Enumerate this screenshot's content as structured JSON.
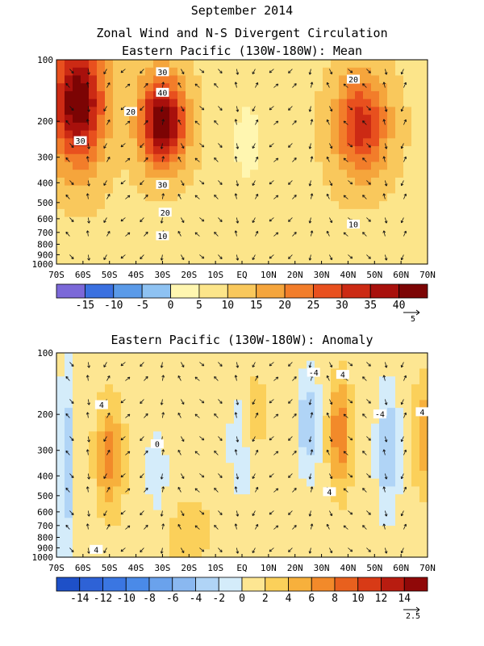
{
  "page": {
    "title_line1": "September 2014",
    "title_line2": "Zonal Wind and N-S Divergent Circulation"
  },
  "chart_data": [
    {
      "type": "heatmap",
      "title": "Eastern Pacific (130W-180W): Mean",
      "xlabel": "",
      "ylabel": "",
      "x_ticks": [
        "70S",
        "60S",
        "50S",
        "40S",
        "30S",
        "20S",
        "10S",
        "EQ",
        "10N",
        "20N",
        "30N",
        "40N",
        "50N",
        "60N",
        "70N"
      ],
      "x_range": [
        -70,
        70
      ],
      "y_ticks": [
        100,
        200,
        300,
        400,
        500,
        600,
        700,
        800,
        900,
        1000
      ],
      "y_range": [
        100,
        1000
      ],
      "y_scale": "log",
      "colorbar_levels": [
        -20,
        -15,
        -10,
        -5,
        0,
        5,
        10,
        15,
        20,
        25,
        30,
        35,
        40,
        45
      ],
      "colorbar_labels": [
        "-15",
        "-10",
        "-5",
        "0",
        "5",
        "10",
        "15",
        "20",
        "25",
        "30",
        "35",
        "40"
      ],
      "colorbar_colors": [
        "#7b68d8",
        "#3a70e0",
        "#5a9ae8",
        "#8ec2f2",
        "#fff6b0",
        "#fce58a",
        "#f9c85c",
        "#f5a53c",
        "#f27d2a",
        "#e8501e",
        "#cc2a14",
        "#a8100c",
        "#7c0404"
      ],
      "vector_reference": "5",
      "contour_labels": [
        {
          "text": "30",
          "lat": -30,
          "p": 115
        },
        {
          "text": "40",
          "lat": -30,
          "p": 145
        },
        {
          "text": "20",
          "lat": -42,
          "p": 180
        },
        {
          "text": "30",
          "lat": -61,
          "p": 250
        },
        {
          "text": "30",
          "lat": -30,
          "p": 410
        },
        {
          "text": "20",
          "lat": -29,
          "p": 560
        },
        {
          "text": "10",
          "lat": -30,
          "p": 730
        },
        {
          "text": "20",
          "lat": 42,
          "p": 125
        },
        {
          "text": "10",
          "lat": 42,
          "p": 640
        }
      ],
      "wind_centers": [
        {
          "lat": -62,
          "p": 160,
          "u": 36,
          "sx": 10,
          "sy": 0.7
        },
        {
          "lat": -30,
          "p": 200,
          "u": 36,
          "sx": 8.5,
          "sy": 0.5
        },
        {
          "lat": 45,
          "p": 210,
          "u": 24,
          "sx": 10,
          "sy": 0.55
        },
        {
          "lat": 2,
          "p": 250,
          "u": -5,
          "sx": 9,
          "sy": 0.9
        }
      ],
      "wind_background": 9
    },
    {
      "type": "heatmap",
      "title": "Eastern Pacific (130W-180W): Anomaly",
      "xlabel": "",
      "ylabel": "",
      "x_ticks": [
        "70S",
        "60S",
        "50S",
        "40S",
        "30S",
        "20S",
        "10S",
        "EQ",
        "10N",
        "20N",
        "30N",
        "40N",
        "50N",
        "60N",
        "70N"
      ],
      "x_range": [
        -70,
        70
      ],
      "y_ticks": [
        100,
        200,
        300,
        400,
        500,
        600,
        700,
        800,
        900,
        1000
      ],
      "y_range": [
        100,
        1000
      ],
      "y_scale": "log",
      "colorbar_levels": [
        -16,
        -14,
        -12,
        -10,
        -8,
        -6,
        -4,
        -2,
        0,
        2,
        4,
        6,
        8,
        10,
        12,
        14,
        16
      ],
      "colorbar_labels": [
        "-14",
        "-12",
        "-10",
        "-8",
        "-6",
        "-4",
        "-2",
        "0",
        "2",
        "4",
        "6",
        "8",
        "10",
        "12",
        "14"
      ],
      "colorbar_colors": [
        "#1e50c8",
        "#2e62d6",
        "#3a76e2",
        "#4a8ae8",
        "#6aa2ec",
        "#8ab8f0",
        "#b0d4f6",
        "#d4ecfa",
        "#fde692",
        "#fbd05a",
        "#f7b03c",
        "#f28a2a",
        "#e8601e",
        "#d83a16",
        "#b81c10",
        "#900808"
      ],
      "vector_reference": "2.5",
      "contour_labels": [
        {
          "text": "4",
          "lat": -53,
          "p": 180
        },
        {
          "text": "0",
          "lat": -32,
          "p": 280
        },
        {
          "text": "-4",
          "lat": 27,
          "p": 125
        },
        {
          "text": "4",
          "lat": 38,
          "p": 128
        },
        {
          "text": "4",
          "lat": 33,
          "p": 480
        },
        {
          "text": "-4",
          "lat": 52,
          "p": 200
        },
        {
          "text": "4",
          "lat": 68,
          "p": 195
        },
        {
          "text": "4",
          "lat": -55,
          "p": 920
        }
      ],
      "wind_centers": [
        {
          "lat": -50,
          "p": 320,
          "u": 6,
          "sx": 5,
          "sy": 0.6
        },
        {
          "lat": -66,
          "p": 350,
          "u": -4,
          "sx": 3,
          "sy": 1.2
        },
        {
          "lat": -32,
          "p": 400,
          "u": -2.5,
          "sx": 4,
          "sy": 0.5
        },
        {
          "lat": 5,
          "p": 200,
          "u": 2.5,
          "sx": 4,
          "sy": 0.6
        },
        {
          "lat": 0,
          "p": 300,
          "u": -2,
          "sx": 6,
          "sy": 0.8
        },
        {
          "lat": 25,
          "p": 220,
          "u": -5,
          "sx": 4,
          "sy": 0.55
        },
        {
          "lat": 37,
          "p": 250,
          "u": 7,
          "sx": 4,
          "sy": 0.6
        },
        {
          "lat": 55,
          "p": 300,
          "u": -5,
          "sx": 4,
          "sy": 0.7
        },
        {
          "lat": 68,
          "p": 250,
          "u": 5,
          "sx": 3,
          "sy": 0.6
        },
        {
          "lat": -20,
          "p": 750,
          "u": 1.5,
          "sx": 15,
          "sy": 0.5
        }
      ],
      "wind_background": 1
    }
  ]
}
